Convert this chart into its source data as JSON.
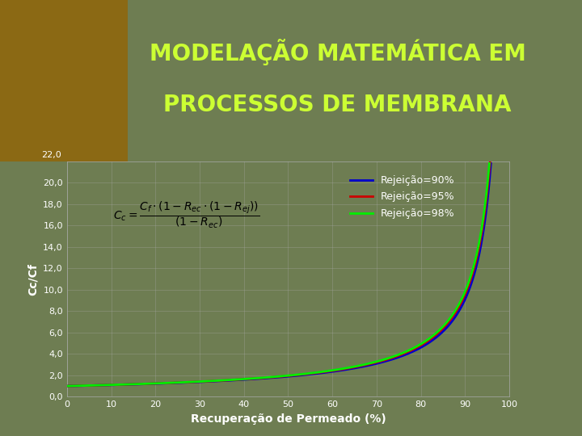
{
  "title_line1": "MODELAÇÃO MATEMÁTICA EM",
  "title_line2": "PROCESSOS DE MEMBRANA",
  "title_color": "#ccff33",
  "bg_color": "#6e7d52",
  "plot_bg_color": "#6e7d52",
  "xlabel": "Recuperação de Permeado (%)",
  "ylabel": "Cc/Cf",
  "xlim": [
    0,
    100
  ],
  "ylim": [
    0.0,
    22.0
  ],
  "yticks": [
    0.0,
    2.0,
    4.0,
    6.0,
    8.0,
    10.0,
    12.0,
    14.0,
    16.0,
    18.0,
    20.0
  ],
  "xticks": [
    0,
    10,
    20,
    30,
    40,
    50,
    60,
    70,
    80,
    90,
    100
  ],
  "legend_labels": [
    "Rejeição=90%",
    "Rejeição=95%",
    "Rejeição=98%"
  ],
  "rejections": [
    0.9,
    0.95,
    0.98
  ],
  "line_colors": [
    "#0000cc",
    "#cc0000",
    "#00ee00"
  ],
  "grid_color": "#aaaaaa",
  "tick_label_color": "#ffffff",
  "axis_label_color": "#ffffff",
  "legend_text_color": "#ffffff",
  "title_fontsize": 20,
  "axis_label_fontsize": 10,
  "tick_fontsize": 8,
  "legend_fontsize": 9,
  "fig_width": 7.2,
  "fig_height": 5.4,
  "fig_dpi": 100
}
